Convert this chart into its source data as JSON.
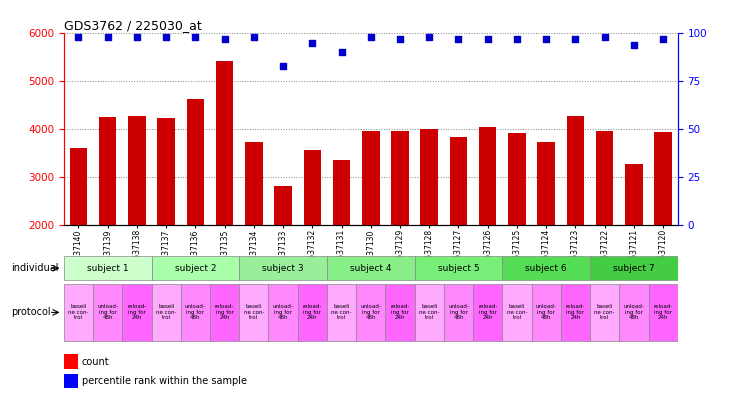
{
  "title": "GDS3762 / 225030_at",
  "samples": [
    "GSM537140",
    "GSM537139",
    "GSM537138",
    "GSM537137",
    "GSM537136",
    "GSM537135",
    "GSM537134",
    "GSM537133",
    "GSM537132",
    "GSM537131",
    "GSM537130",
    "GSM537129",
    "GSM537128",
    "GSM537127",
    "GSM537126",
    "GSM537125",
    "GSM537124",
    "GSM537123",
    "GSM537122",
    "GSM537121",
    "GSM537120"
  ],
  "counts": [
    3600,
    4250,
    4280,
    4230,
    4620,
    5420,
    3720,
    2820,
    3560,
    3360,
    3960,
    3960,
    4000,
    3830,
    4040,
    3920,
    3720,
    4280,
    3960,
    3270,
    3940
  ],
  "percentile_ranks": [
    98,
    98,
    98,
    98,
    98,
    97,
    98,
    83,
    95,
    90,
    98,
    97,
    98,
    97,
    97,
    97,
    97,
    97,
    98,
    94,
    97
  ],
  "bar_color": "#cc0000",
  "dot_color": "#0000cc",
  "ylim_left": [
    2000,
    6000
  ],
  "ylim_right": [
    0,
    100
  ],
  "yticks_left": [
    2000,
    3000,
    4000,
    5000,
    6000
  ],
  "yticks_right": [
    0,
    25,
    50,
    75,
    100
  ],
  "subjects_order": [
    "subject 1",
    "subject 2",
    "subject 3",
    "subject 4",
    "subject 5",
    "subject 6",
    "subject 7"
  ],
  "subjects": {
    "subject 1": {
      "start": 0,
      "end": 3,
      "color": "#ccffcc"
    },
    "subject 2": {
      "start": 3,
      "end": 6,
      "color": "#aaffaa"
    },
    "subject 3": {
      "start": 6,
      "end": 9,
      "color": "#99ee99"
    },
    "subject 4": {
      "start": 9,
      "end": 12,
      "color": "#88ee88"
    },
    "subject 5": {
      "start": 12,
      "end": 15,
      "color": "#77ee77"
    },
    "subject 6": {
      "start": 15,
      "end": 18,
      "color": "#55dd55"
    },
    "subject 7": {
      "start": 18,
      "end": 21,
      "color": "#44cc44"
    }
  },
  "protocol_colors": [
    "#ffaaff",
    "#ff88ff",
    "#ff66ff"
  ],
  "protocol_labels_short": [
    "baseli\nne con-\ntrol",
    "unload-\ning for\n48h",
    "reload-\ning for\n24h"
  ],
  "background_color": "#ffffff",
  "label_individual": "individual",
  "label_protocol": "protocol",
  "legend_count": "count",
  "legend_percentile": "percentile rank within the sample"
}
